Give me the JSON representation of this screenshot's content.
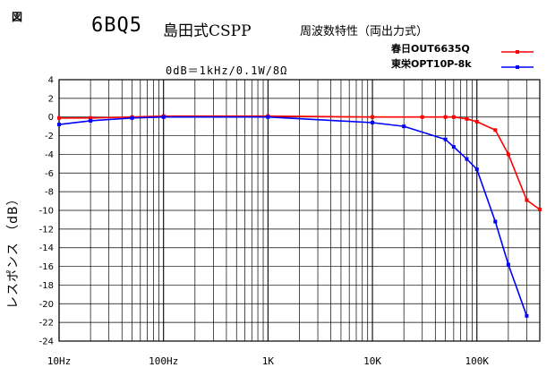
{
  "header": {
    "figure_label": "図",
    "title_model": "6BQ5",
    "title_text": "島田式CSPP",
    "title_sub": "周波数特性（両出力式）",
    "reference": "0dB＝1kHz/0.1W/8Ω"
  },
  "chart_data": {
    "type": "line",
    "xscale": "log",
    "xlim": [
      10,
      400000
    ],
    "ylim": [
      -24,
      4
    ],
    "ystep": 2,
    "grid": true,
    "legend_position": "top-right",
    "xlabel": "",
    "ylabel": "レスポンス （dB）",
    "x_tick_labels": [
      {
        "x": 10,
        "label": "10Hz"
      },
      {
        "x": 100,
        "label": "100Hz"
      },
      {
        "x": 1000,
        "label": "1K"
      },
      {
        "x": 10000,
        "label": "10K"
      },
      {
        "x": 100000,
        "label": "100K"
      }
    ],
    "y_tick_labels": [
      "4",
      "2",
      "0",
      "-2",
      "-4",
      "-6",
      "-8",
      "-10",
      "-12",
      "-14",
      "-16",
      "-18",
      "-20",
      "-22",
      "-24"
    ],
    "series": [
      {
        "name": "春日OUT6635Q",
        "color": "#ff0000",
        "x": [
          10,
          20,
          50,
          100,
          1000,
          10000,
          30000,
          50000,
          60000,
          80000,
          100000,
          150000,
          200000,
          300000,
          400000
        ],
        "y": [
          -0.1,
          -0.1,
          0.0,
          0.1,
          0.1,
          0.0,
          0.0,
          0.0,
          0.0,
          -0.2,
          -0.5,
          -1.4,
          -4.0,
          -8.9,
          -9.9
        ]
      },
      {
        "name": "東栄OPT10P-8k",
        "color": "#0000ff",
        "x": [
          10,
          20,
          50,
          100,
          1000,
          10000,
          20000,
          50000,
          60000,
          80000,
          100000,
          150000,
          200000,
          300000
        ],
        "y": [
          -0.8,
          -0.4,
          -0.1,
          0.0,
          0.0,
          -0.6,
          -1.0,
          -2.4,
          -3.2,
          -4.5,
          -5.6,
          -11.2,
          -15.8,
          -21.3
        ]
      }
    ]
  }
}
